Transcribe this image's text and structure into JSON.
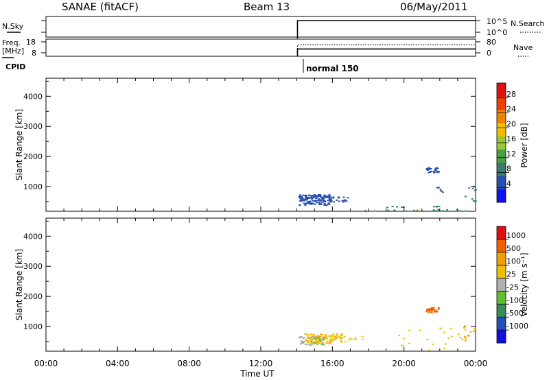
{
  "header": {
    "radar": "SANAE (fitACF)",
    "beam": "Beam 13",
    "date": "06/May/2011"
  },
  "top_panels": {
    "nsky_label": "N.Sky",
    "nsearch_label": "N.Search",
    "freq_label_1": "Freq.",
    "freq_label_2": "[MHz]",
    "nave_label": "Nave",
    "cpid_label": "CPID",
    "cpid_value": "normal 150",
    "nsky_ticks": [
      "10^5",
      "10^0"
    ],
    "nsearch_ticks": [
      "10^5",
      "10^0"
    ],
    "freq_ticks": [
      "18",
      "8"
    ],
    "nave_ticks": [
      "80",
      "0"
    ],
    "data_start_hour": 14.05,
    "freq_level_mhz": 11.5,
    "nave_level": 58
  },
  "colorbars": {
    "power": {
      "label": "Power [dB]",
      "ticks": [
        "28",
        "24",
        "20",
        "16",
        "12",
        "8",
        "4"
      ],
      "colors": [
        "#1010f0",
        "#2850b0",
        "#3a7a70",
        "#4aa040",
        "#9ac830",
        "#f0c000",
        "#f08000",
        "#f04000",
        "#e01010"
      ]
    },
    "velocity": {
      "label": "Velocity [m s⁻¹]",
      "ticks": [
        "1000",
        "500",
        "100",
        "25",
        "-25",
        "-100",
        "-500",
        "-1000"
      ],
      "colors": [
        "#1010e0",
        "#2050b8",
        "#3a8a5a",
        "#60c030",
        "#b0b0b0",
        "#f0c000",
        "#f0a000",
        "#f06000",
        "#e01010"
      ]
    }
  },
  "chart_data": {
    "type": "scatter",
    "title": "SANAE (fitACF)  Beam 13  06/May/2011",
    "xlabel": "Time UT",
    "ylabel": "Slant Range [km]",
    "xlim_hours": [
      0,
      24
    ],
    "ylim_km": [
      180,
      4600
    ],
    "x_tick_labels": [
      "00:00",
      "04:00",
      "08:00",
      "12:00",
      "16:00",
      "20:00",
      "00:00"
    ],
    "y_tick_labels": [
      "1000",
      "2000",
      "3000",
      "4000"
    ],
    "power_clusters": [
      {
        "t0": 14.1,
        "t1": 15.8,
        "r0": 400,
        "r1": 750,
        "color": "#2850b0",
        "n": 130
      },
      {
        "t0": 15.8,
        "t1": 16.8,
        "r0": 500,
        "r1": 720,
        "color": "#2850b0",
        "n": 22
      },
      {
        "t0": 21.2,
        "t1": 21.9,
        "r0": 1480,
        "r1": 1650,
        "color": "#2850b0",
        "n": 28
      },
      {
        "t0": 21.8,
        "t1": 22.2,
        "r0": 800,
        "r1": 1000,
        "color": "#2850b0",
        "n": 6
      },
      {
        "t0": 19.0,
        "t1": 23.6,
        "r0": 200,
        "r1": 400,
        "color": "#3a7a70",
        "n": 18
      },
      {
        "t0": 23.3,
        "t1": 24.0,
        "r0": 500,
        "r1": 1050,
        "color": "#3a7a70",
        "n": 10
      },
      {
        "t0": 17.5,
        "t1": 24.0,
        "r0": 190,
        "r1": 260,
        "color": "#4aa040",
        "n": 10
      }
    ],
    "velocity_clusters": [
      {
        "t0": 14.1,
        "t1": 15.6,
        "r0": 400,
        "r1": 700,
        "color": "#b0b0b0",
        "n": 60
      },
      {
        "t0": 14.4,
        "t1": 16.5,
        "r0": 450,
        "r1": 780,
        "color": "#f0c000",
        "n": 90
      },
      {
        "t0": 14.6,
        "t1": 15.5,
        "r0": 600,
        "r1": 780,
        "color": "#f0a000",
        "n": 12
      },
      {
        "t0": 16.5,
        "t1": 18.0,
        "r0": 500,
        "r1": 700,
        "color": "#f0c000",
        "n": 10
      },
      {
        "t0": 21.2,
        "t1": 21.9,
        "r0": 1480,
        "r1": 1650,
        "color": "#f06000",
        "n": 28
      },
      {
        "t0": 19.5,
        "t1": 23.8,
        "r0": 200,
        "r1": 1000,
        "color": "#f0c000",
        "n": 22
      },
      {
        "t0": 23.3,
        "t1": 24.0,
        "r0": 500,
        "r1": 1050,
        "color": "#f0a000",
        "n": 10
      },
      {
        "t0": 14.1,
        "t1": 15.5,
        "r0": 420,
        "r1": 650,
        "color": "#60c030",
        "n": 8
      }
    ]
  }
}
